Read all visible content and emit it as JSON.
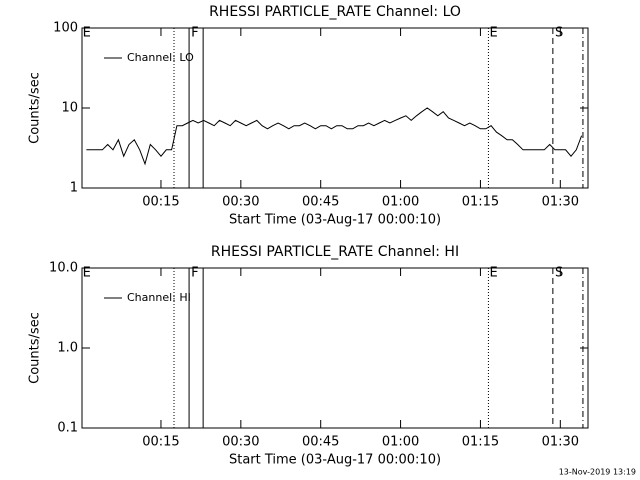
{
  "chart_data": [
    {
      "type": "line",
      "title": "RHESSI PARTICLE_RATE Channel: LO",
      "xlabel": "Start Time (03-Aug-17 00:00:10)",
      "ylabel": "Counts/sec",
      "xlim": [
        0.17,
        95.2
      ],
      "xticks": [
        {
          "value": 15,
          "label": "00:15"
        },
        {
          "value": 30,
          "label": "00:30"
        },
        {
          "value": 45,
          "label": "00:45"
        },
        {
          "value": 60,
          "label": "01:00"
        },
        {
          "value": 75,
          "label": "01:15"
        },
        {
          "value": 90,
          "label": "01:30"
        }
      ],
      "ylim": [
        1,
        100
      ],
      "yticks": [
        1,
        10,
        100
      ],
      "log_y": true,
      "legend": "upper left",
      "series": [
        {
          "name": "Channel: LO",
          "color": "#000000",
          "x": [
            1,
            2,
            3,
            4,
            5,
            6,
            7,
            8,
            9,
            10,
            11,
            12,
            13,
            14,
            15,
            16,
            17,
            18,
            19,
            20,
            21,
            22,
            23,
            24,
            25,
            26,
            27,
            28,
            29,
            30,
            31,
            32,
            33,
            34,
            35,
            36,
            37,
            38,
            39,
            40,
            41,
            42,
            43,
            44,
            45,
            46,
            47,
            48,
            49,
            50,
            51,
            52,
            53,
            54,
            55,
            56,
            57,
            58,
            59,
            60,
            61,
            62,
            63,
            64,
            65,
            66,
            67,
            68,
            69,
            70,
            71,
            72,
            73,
            74,
            75,
            76,
            77,
            78,
            79,
            80,
            81,
            82,
            83,
            84,
            85,
            86,
            87,
            88,
            89,
            90,
            91,
            92,
            93,
            94
          ],
          "values": [
            3,
            3,
            3,
            3,
            3.5,
            3,
            4,
            2.5,
            3.5,
            4,
            3,
            2,
            3.5,
            3,
            2.5,
            3,
            3,
            6,
            6,
            6.5,
            7,
            6.5,
            7,
            6.5,
            6,
            7,
            6.5,
            6,
            7,
            6.5,
            6,
            6.5,
            7,
            6,
            5.5,
            6,
            6.5,
            6,
            5.5,
            6,
            6,
            6.5,
            6,
            5.5,
            6,
            6,
            5.5,
            6,
            6,
            5.5,
            5.5,
            6,
            6,
            6.5,
            6,
            6.5,
            7,
            6.5,
            7,
            7.5,
            8,
            7,
            8,
            9,
            10,
            9,
            8,
            9,
            7.5,
            7,
            6.5,
            6,
            6.5,
            6,
            5.5,
            5.5,
            6,
            5,
            4.5,
            4,
            4,
            3.5,
            3,
            3,
            3,
            3,
            3,
            3.5,
            3,
            3,
            3,
            2.5,
            3,
            4.5
          ]
        }
      ],
      "markers": [
        {
          "x": 17.45,
          "style": "dotted"
        },
        {
          "x": 20.28,
          "style": "solid"
        },
        {
          "x": 22.92,
          "style": "solid"
        },
        {
          "x": 76.5,
          "style": "dotted"
        },
        {
          "x": 88.6,
          "style": "dashed"
        },
        {
          "x": 94.25,
          "style": "dashdot"
        }
      ],
      "marker_labels": [
        {
          "x": 0.28,
          "text": "E"
        },
        {
          "x": 20.66,
          "text": "F"
        },
        {
          "x": 76.7,
          "text": "E"
        },
        {
          "x": 89.0,
          "text": "S"
        }
      ]
    },
    {
      "type": "line",
      "title": "RHESSI PARTICLE_RATE Channel: HI",
      "xlabel": "Start Time (03-Aug-17 00:00:10)",
      "ylabel": "Counts/sec",
      "xlim": [
        0.17,
        95.2
      ],
      "xticks": [
        {
          "value": 15,
          "label": "00:15"
        },
        {
          "value": 30,
          "label": "00:30"
        },
        {
          "value": 45,
          "label": "00:45"
        },
        {
          "value": 60,
          "label": "01:00"
        },
        {
          "value": 75,
          "label": "01:15"
        },
        {
          "value": 90,
          "label": "01:30"
        }
      ],
      "ylim": [
        0.1,
        10
      ],
      "yticks": [
        0.1,
        {
          "value": 1,
          "label": "1.0"
        },
        {
          "value": 10,
          "label": "10.0"
        }
      ],
      "log_y": true,
      "legend": "upper left",
      "series": [
        {
          "name": "Channel: HI",
          "color": "#000000"
        }
      ],
      "markers": [
        {
          "x": 17.45,
          "style": "dotted"
        },
        {
          "x": 20.28,
          "style": "solid"
        },
        {
          "x": 22.92,
          "style": "solid"
        },
        {
          "x": 76.5,
          "style": "dotted"
        },
        {
          "x": 88.6,
          "style": "dashed"
        },
        {
          "x": 94.25,
          "style": "dashdot"
        }
      ],
      "marker_labels": [
        {
          "x": 0.28,
          "text": "E"
        },
        {
          "x": 20.66,
          "text": "F"
        },
        {
          "x": 76.7,
          "text": "E"
        },
        {
          "x": 89.0,
          "text": "S"
        }
      ]
    }
  ],
  "footer": "13-Nov-2019 13:19"
}
